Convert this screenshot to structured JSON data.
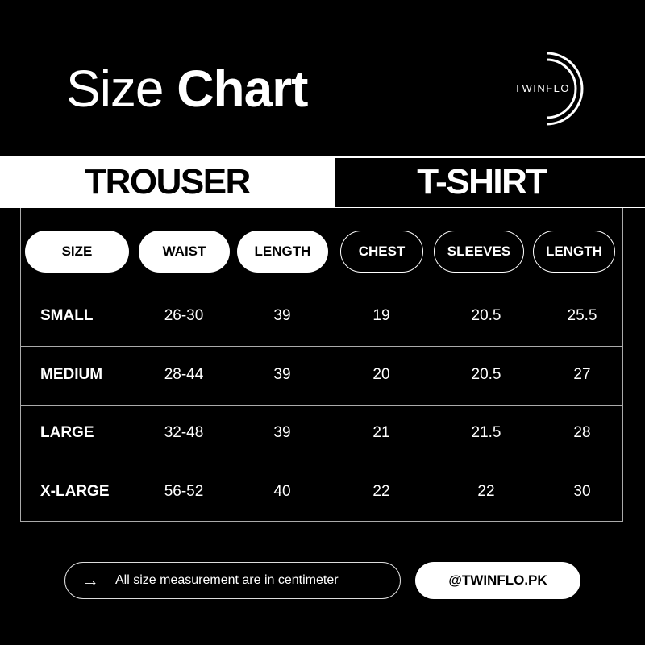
{
  "title": {
    "light": "Size",
    "bold": "Chart"
  },
  "brand": {
    "logo_text": "TWINFLO"
  },
  "sections": {
    "trouser": "TROUSER",
    "tshirt": "T-SHIRT"
  },
  "headers": [
    "SIZE",
    "WAIST",
    "LENGTH",
    "CHEST",
    "SLEEVES",
    "LENGTH"
  ],
  "rows": [
    {
      "size": "SMALL",
      "waist": "26-30",
      "trouser_length": "39",
      "chest": "19",
      "sleeves": "20.5",
      "tshirt_length": "25.5"
    },
    {
      "size": "MEDIUM",
      "waist": "28-44",
      "trouser_length": "39",
      "chest": "20",
      "sleeves": "20.5",
      "tshirt_length": "27"
    },
    {
      "size": "LARGE",
      "waist": "32-48",
      "trouser_length": "39",
      "chest": "21",
      "sleeves": "21.5",
      "tshirt_length": "28"
    },
    {
      "size": "X-LARGE",
      "waist": "56-52",
      "trouser_length": "40",
      "chest": "22",
      "sleeves": "22",
      "tshirt_length": "30"
    }
  ],
  "footer": {
    "arrow_icon": "→",
    "note": "All size measurement are in centimeter",
    "handle": "@TWINFLO.PK"
  }
}
